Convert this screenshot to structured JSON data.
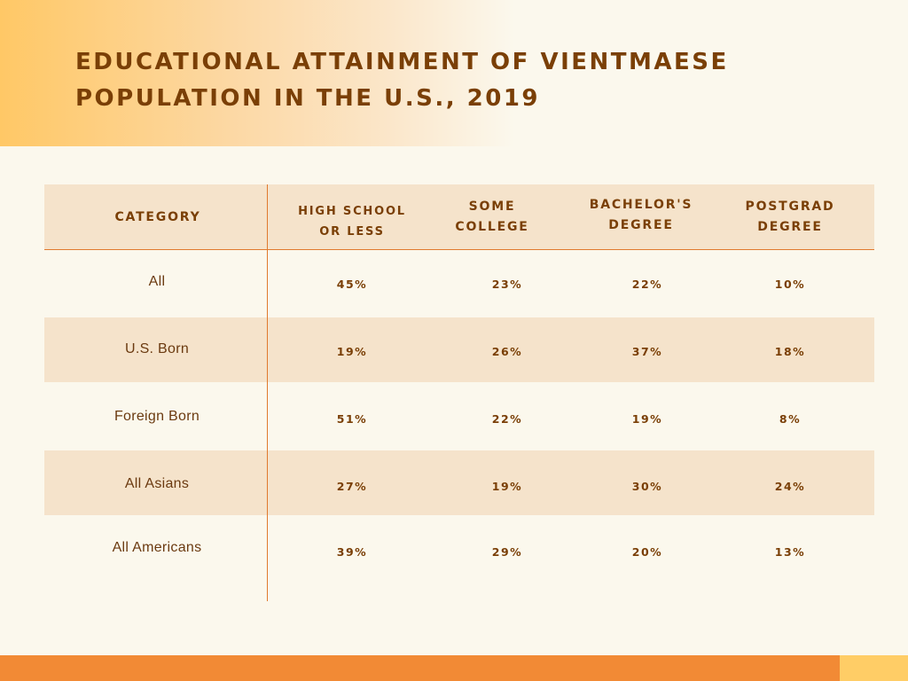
{
  "title": {
    "line1": "EDUCATIONAL ATTAINMENT OF VIENTMAESE",
    "line2": "POPULATION IN THE U.S., 2019"
  },
  "colors": {
    "background": "#fbf8ed",
    "accent_orange": "#f28a35",
    "accent_yellow": "#ffcd66",
    "band": "#f5e3cb",
    "text_brown": "#7a3f06",
    "rule": "#e07a2e"
  },
  "chart_data": {
    "type": "table",
    "title": "EDUCATIONAL ATTAINMENT OF VIENTMAESE POPULATION IN THE U.S., 2019",
    "columns": [
      {
        "lines": [
          "CATEGORY"
        ]
      },
      {
        "lines": [
          "HIGH SCHOOL",
          "OR LESS"
        ]
      },
      {
        "lines": [
          "SOME",
          "COLLEGE"
        ]
      },
      {
        "lines": [
          "BACHELOR'S",
          "DEGREE"
        ]
      },
      {
        "lines": [
          "POSTGRAD",
          "DEGREE"
        ]
      }
    ],
    "rows": [
      {
        "category": "All",
        "values": [
          "45%",
          "23%",
          "22%",
          "10%"
        ]
      },
      {
        "category": "U.S. Born",
        "values": [
          "19%",
          "26%",
          "37%",
          "18%"
        ]
      },
      {
        "category": "Foreign Born",
        "values": [
          "51%",
          "22%",
          "19%",
          "8%"
        ]
      },
      {
        "category": "All Asians",
        "values": [
          "27%",
          "19%",
          "30%",
          "24%"
        ]
      },
      {
        "category": "All Americans",
        "values": [
          "39%",
          "29%",
          "20%",
          "13%"
        ]
      }
    ]
  }
}
